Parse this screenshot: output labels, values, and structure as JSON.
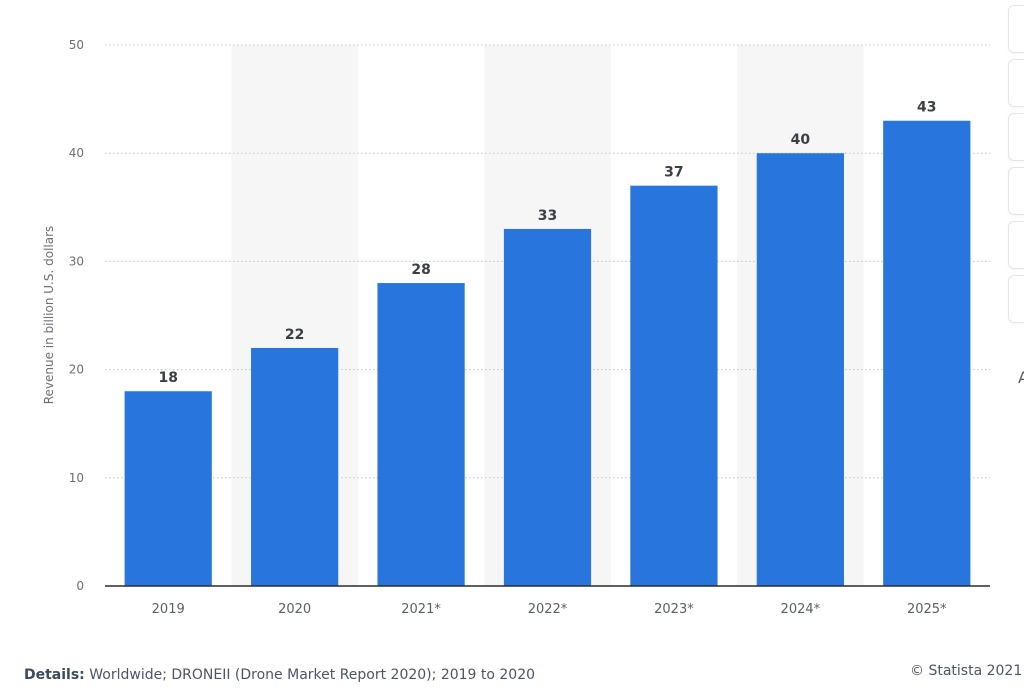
{
  "chart_data": {
    "type": "bar",
    "categories": [
      "2019",
      "2020",
      "2021*",
      "2022*",
      "2023*",
      "2024*",
      "2025*"
    ],
    "values": [
      18,
      22,
      28,
      33,
      37,
      40,
      43
    ],
    "data_labels": [
      "18",
      "22",
      "28",
      "33",
      "37",
      "40",
      "43"
    ],
    "title": "",
    "xlabel": "",
    "ylabel": "Revenue in billion U.S. dollars",
    "ylim": [
      0,
      50
    ],
    "yticks": [
      0,
      10,
      20,
      30,
      40,
      50
    ],
    "ytick_labels": [
      "0",
      "10",
      "20",
      "30",
      "40",
      "50"
    ],
    "grid": true,
    "bar_color": "#2876dd",
    "band_color": "#f6f6f6",
    "grid_color": "#bfc3c9"
  },
  "footer": {
    "details_label": "Details:",
    "details_text": "Worldwide; DRONEII (Drone Market Report 2020); 2019 to 2020",
    "copyright": "© Statista 2021"
  },
  "sidebar": {
    "partial_glyph": "A"
  }
}
